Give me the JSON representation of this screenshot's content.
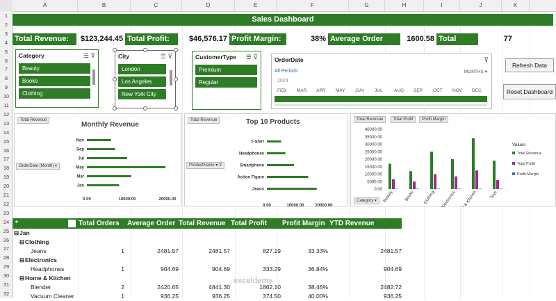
{
  "sheet": {
    "columns": [
      "A",
      "B",
      "C",
      "D",
      "E",
      "F",
      "G",
      "H",
      "I",
      "J",
      "K"
    ],
    "rows": [
      "1",
      "2",
      "3",
      "4",
      "5",
      "6",
      "7",
      "8",
      "9",
      "10",
      "11",
      "12",
      "13",
      "14",
      "15",
      "16",
      "17",
      "18",
      "19",
      "20",
      "21",
      "22",
      "23",
      "24",
      "25",
      "26",
      "27",
      "28",
      "29",
      "30",
      "31",
      "32"
    ]
  },
  "dashboard": {
    "title": "Sales Dashboard"
  },
  "kpis": [
    {
      "label": "Total Revenue:",
      "value": "$123,244.45"
    },
    {
      "label": "Total Profit:",
      "value": "$46,576.17"
    },
    {
      "label": "Profit Margin:",
      "value": "38%"
    },
    {
      "label": "Average Order Value",
      "value": "1600.58"
    },
    {
      "label": "Total Order",
      "value": "77"
    }
  ],
  "slicers": {
    "category": {
      "title": "Category",
      "items": [
        "Beauty",
        "Books",
        "Clothing"
      ]
    },
    "city": {
      "title": "City",
      "items": [
        "London",
        "Los Angeles",
        "New York City"
      ]
    },
    "customer_type": {
      "title": "CustomerType",
      "items": [
        "Premium",
        "Regular"
      ]
    }
  },
  "timeline": {
    "title": "OrderDate",
    "period_label": "All Periods",
    "level": "MONTHS",
    "year": "2024",
    "months": [
      "FEB",
      "MAR",
      "APR",
      "MAY",
      "JUN",
      "JUL",
      "AUG",
      "SEP",
      "OCT",
      "NOV",
      "DEC"
    ]
  },
  "buttons": {
    "refresh": "Refresh Data",
    "reset": "Reset Dashboard"
  },
  "charts": {
    "monthly": {
      "tag": "Total Revenue",
      "field": "OrderDate (Month)",
      "title": "Monthly Revenue",
      "xticks": [
        "0.00",
        "10000.00",
        "20000.00"
      ]
    },
    "products": {
      "tag": "Total Revenue",
      "field": "ProductName",
      "title": "Top 10 Products",
      "xticks": [
        "0.00",
        "10000.00",
        "20000.00"
      ]
    },
    "category": {
      "tags": [
        "Total Revenue",
        "Total Profit",
        "Profit Margin"
      ],
      "field": "Category",
      "legend_title": "Values",
      "yticks": [
        "40000.00",
        "35000.00",
        "30000.00",
        "25000.00",
        "20000.00",
        "15000.00",
        "10000.00",
        "5000.00",
        "0.00"
      ]
    }
  },
  "chart_data": [
    {
      "type": "bar",
      "orientation": "horizontal",
      "title": "Monthly Revenue",
      "categories": [
        "Nov",
        "Sep",
        "Jul",
        "May",
        "Mar",
        "Jan"
      ],
      "values": [
        6000,
        7000,
        10000,
        19500,
        11000,
        8000
      ],
      "xlim": [
        0,
        20000
      ],
      "color": "#2e7d26"
    },
    {
      "type": "bar",
      "orientation": "horizontal",
      "title": "Top 10 Products",
      "categories": [
        "T-Shirt",
        "Headphones",
        "Smartphone",
        "Action Figure",
        "Jeans"
      ],
      "values": [
        5000,
        6500,
        9500,
        14500,
        17500
      ],
      "xlim": [
        0,
        20000
      ],
      "color": "#2e7d26"
    },
    {
      "type": "bar",
      "categories": [
        "Beauty",
        "Books",
        "Clothing",
        "Electronics",
        "Home & Kitchen",
        "Toys"
      ],
      "ylim": [
        0,
        40000
      ],
      "series": [
        {
          "name": "Total Revenue",
          "values": [
            17000,
            12000,
            25000,
            20000,
            34000,
            19000
          ],
          "color": "#2e7d26"
        },
        {
          "name": "Total Profit",
          "values": [
            6500,
            5000,
            10000,
            8500,
            12500,
            6000
          ],
          "color": "#9c2a8c"
        },
        {
          "name": "Profit Margin",
          "values": [
            0.4,
            0.4,
            0.4,
            0.4,
            0.4,
            0.4
          ],
          "color": "#3b6fb5"
        }
      ]
    }
  ],
  "pivot": {
    "headers": [
      "Total Orders",
      "Average Order",
      "Total Revenue",
      "Total Profit",
      "Profit Margin",
      "YTD Revenue"
    ],
    "month": "Jan",
    "rows": [
      {
        "level": 1,
        "label": "Clothing"
      },
      {
        "level": 2,
        "label": "Jeans",
        "orders": "1",
        "avg": "2481.57",
        "rev": "2481.57",
        "profit": "827.19",
        "margin": "33.33%",
        "ytd": "2481.57"
      },
      {
        "level": 1,
        "label": "Electronics"
      },
      {
        "level": 2,
        "label": "Headphones",
        "orders": "1",
        "avg": "904.69",
        "rev": "904.69",
        "profit": "333.29",
        "margin": "36.84%",
        "ytd": "904.69"
      },
      {
        "level": 1,
        "label": "Home & Kitchen"
      },
      {
        "level": 2,
        "label": "Blender",
        "orders": "2",
        "avg": "2420.65",
        "rev": "4841.30",
        "profit": "1862.10",
        "margin": "38.46%",
        "ytd": "2482.72"
      },
      {
        "level": 2,
        "label": "Vacuum Cleaner",
        "orders": "1",
        "avg": "936.25",
        "rev": "936.25",
        "profit": "374.50",
        "margin": "40.00%",
        "ytd": "936.25"
      }
    ]
  },
  "watermark": "exceldemy"
}
